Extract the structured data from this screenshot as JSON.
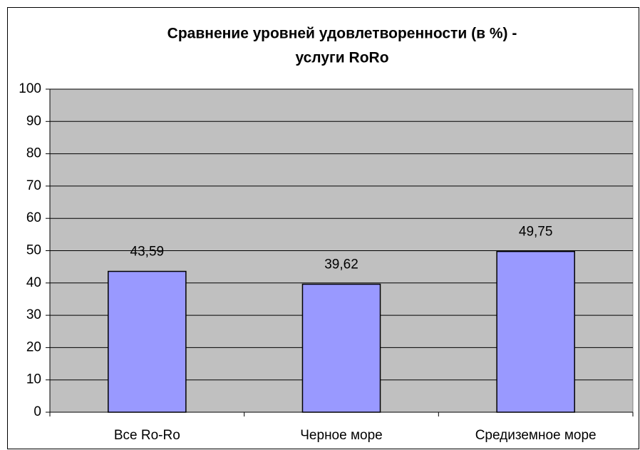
{
  "chart_data": {
    "type": "bar",
    "title": [
      "Сравнение уровней удовлетворенности (в %) -",
      "услуги RoRo"
    ],
    "categories": [
      "Все Ro-Ro",
      "Черное море",
      "Средиземное море"
    ],
    "values": [
      43.59,
      39.62,
      49.75
    ],
    "value_labels": [
      "43,59",
      "39,62",
      "49,75"
    ],
    "color": "#9999ff",
    "ylim": [
      0,
      100
    ],
    "yticks": [
      0,
      10,
      20,
      30,
      40,
      50,
      60,
      70,
      80,
      90,
      100
    ],
    "grid": true
  }
}
